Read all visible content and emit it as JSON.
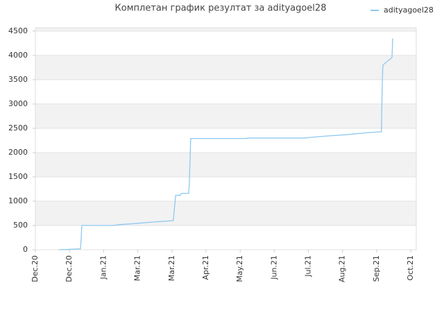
{
  "chart_data": {
    "type": "line",
    "title": "Комплетан график резултат за adityagoel28",
    "x": [
      0.69,
      1.06,
      1.32,
      1.34,
      1.36,
      2.32,
      2.42,
      2.93,
      3.43,
      4.04,
      4.11,
      4.25,
      4.27,
      4.49,
      4.51,
      4.53,
      4.55,
      6.18,
      6.22,
      7.91,
      8.01,
      8.52,
      9.13,
      9.74,
      10.14,
      10.16,
      10.18,
      10.45,
      10.47
    ],
    "series": [
      {
        "name": "adityagoel28",
        "color": "#8cc8f0",
        "values": [
          0,
          10,
          20,
          200,
          500,
          500,
          515,
          540,
          570,
          600,
          1120,
          1120,
          1160,
          1160,
          1350,
          1800,
          2290,
          2290,
          2300,
          2300,
          2310,
          2340,
          2370,
          2410,
          2430,
          3300,
          3800,
          3960,
          4350
        ]
      }
    ],
    "xlim": [
      0,
      11.16
    ],
    "xticks": [
      {
        "value": 0,
        "label": "Dec.20"
      },
      {
        "value": 1,
        "label": "Dec.20"
      },
      {
        "value": 2,
        "label": "Jan.21"
      },
      {
        "value": 3,
        "label": "Mar.21"
      },
      {
        "value": 4,
        "label": "Mar.21"
      },
      {
        "value": 5,
        "label": "Apr.21"
      },
      {
        "value": 6,
        "label": "May.21"
      },
      {
        "value": 7,
        "label": "Jun.21"
      },
      {
        "value": 8,
        "label": "Jul.21"
      },
      {
        "value": 9,
        "label": "Aug.21"
      },
      {
        "value": 10,
        "label": "Sep.21"
      },
      {
        "value": 11,
        "label": "Oct.21"
      }
    ],
    "ylim": [
      0,
      4570
    ],
    "yticks": [
      0,
      500,
      1000,
      1500,
      2000,
      2500,
      3000,
      3500,
      4000,
      4500
    ],
    "grid": true,
    "bands": true,
    "legend": "top-right"
  }
}
